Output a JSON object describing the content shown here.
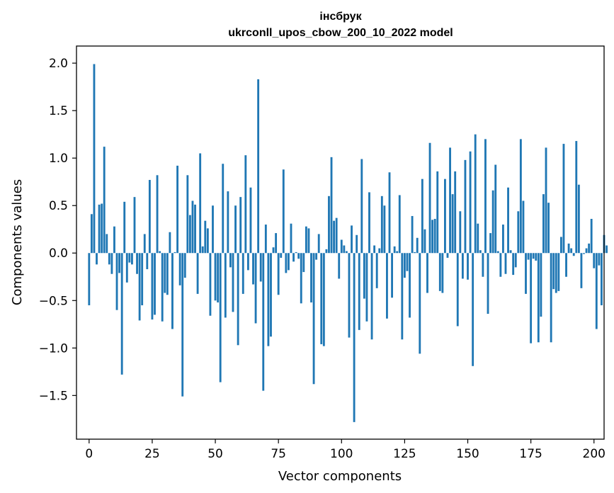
{
  "chart_data": {
    "type": "bar",
    "title_line1": "інсбрук",
    "title_line2": "ukrconll_upos_cbow_200_10_2022 model",
    "xlabel": "Vector components",
    "ylabel": "Components values",
    "xlim": [
      -5,
      204
    ],
    "ylim": [
      -1.96,
      2.18
    ],
    "xticks": [
      0,
      25,
      50,
      75,
      100,
      125,
      150,
      175,
      200
    ],
    "yticks": [
      -1.5,
      -1.0,
      -0.5,
      0.0,
      0.5,
      1.0,
      1.5,
      2.0
    ],
    "ytick_labels": [
      "−1.5",
      "−1.0",
      "−0.5",
      "0.0",
      "0.5",
      "1.0",
      "1.5",
      "2.0"
    ],
    "bar_color": "#1f77b4",
    "values": [
      -0.55,
      0.41,
      1.99,
      -0.12,
      0.51,
      0.52,
      1.12,
      0.2,
      -0.12,
      -0.22,
      0.28,
      -0.6,
      -0.21,
      -1.28,
      0.54,
      -0.31,
      -0.1,
      -0.12,
      0.59,
      -0.22,
      -0.71,
      -0.55,
      0.2,
      -0.17,
      0.77,
      -0.7,
      -0.65,
      0.82,
      0.02,
      -0.72,
      -0.42,
      -0.44,
      0.22,
      -0.8,
      0.01,
      0.92,
      -0.34,
      -1.51,
      -0.26,
      0.82,
      0.4,
      0.55,
      0.51,
      -0.43,
      1.05,
      0.07,
      0.34,
      0.26,
      -0.66,
      0.5,
      -0.5,
      -0.52,
      -1.36,
      0.94,
      -0.68,
      0.65,
      -0.15,
      -0.62,
      0.5,
      -0.97,
      0.59,
      -0.43,
      1.03,
      -0.18,
      0.69,
      -0.33,
      -0.74,
      1.83,
      -0.3,
      -1.45,
      0.3,
      -0.98,
      -0.88,
      0.06,
      0.21,
      -0.44,
      -0.05,
      0.88,
      -0.21,
      -0.18,
      0.31,
      -0.09,
      0.01,
      -0.06,
      -0.53,
      -0.2,
      0.28,
      0.26,
      -0.52,
      -1.38,
      -0.07,
      0.2,
      -0.96,
      -0.98,
      0.04,
      0.6,
      1.01,
      0.34,
      0.37,
      -0.27,
      0.14,
      0.08,
      0.02,
      -0.89,
      0.29,
      -1.78,
      0.19,
      -0.81,
      0.99,
      -0.48,
      -0.72,
      0.64,
      -0.91,
      0.08,
      -0.37,
      0.05,
      0.6,
      0.5,
      -0.69,
      0.85,
      -0.47,
      0.07,
      0.02,
      0.61,
      -0.91,
      -0.26,
      -0.19,
      -0.68,
      0.39,
      0.01,
      0.16,
      -1.06,
      0.78,
      0.25,
      -0.42,
      1.16,
      0.35,
      0.36,
      0.86,
      -0.4,
      -0.42,
      0.78,
      -0.05,
      1.11,
      0.62,
      0.86,
      -0.77,
      0.44,
      -0.27,
      0.98,
      -0.28,
      1.07,
      -1.19,
      1.25,
      0.31,
      0.03,
      -0.25,
      1.2,
      -0.64,
      0.21,
      0.66,
      0.93,
      0.02,
      -0.25,
      0.3,
      -0.22,
      0.69,
      0.03,
      -0.23,
      -0.15,
      0.44,
      1.2,
      0.55,
      -0.43,
      -0.07,
      -0.95,
      -0.06,
      -0.08,
      -0.94,
      -0.67,
      0.62,
      1.11,
      0.53,
      -0.94,
      -0.38,
      -0.42,
      -0.4,
      0.17,
      1.15,
      -0.25,
      0.1,
      0.05,
      -0.03,
      1.18,
      0.72,
      -0.37,
      -0.01,
      0.05,
      0.1,
      0.36,
      -0.16,
      -0.8,
      -0.13,
      -0.55,
      0.19,
      0.08
    ]
  }
}
